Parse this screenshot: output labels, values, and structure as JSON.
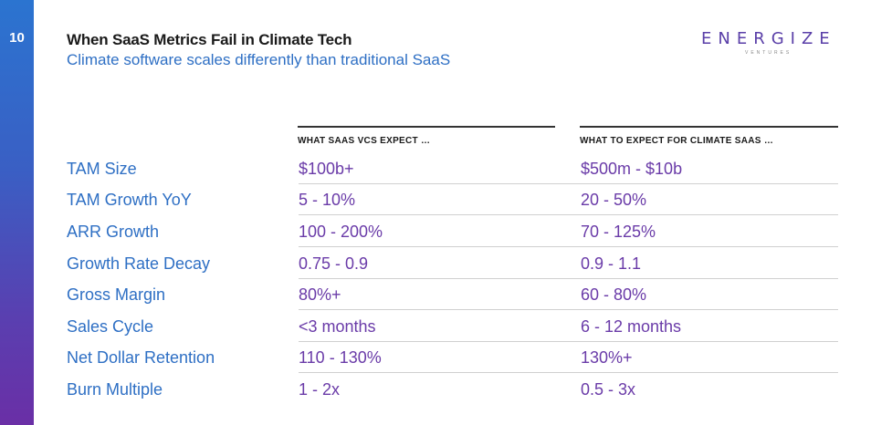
{
  "slide": {
    "page_number": "10",
    "title": "When SaaS Metrics Fail in Climate Tech",
    "subtitle": "Climate software scales differently than traditional SaaS"
  },
  "logo": {
    "word": "ENERGIZE",
    "sub": "VENTURES"
  },
  "table": {
    "headers": [
      "WHAT SAAS VCS EXPECT …",
      "WHAT TO EXPECT FOR CLIMATE SAAS …"
    ],
    "rows": [
      {
        "metric": "TAM Size",
        "saas": "$100b+",
        "climate": "$500m - $10b"
      },
      {
        "metric": "TAM Growth YoY",
        "saas": "5 - 10%",
        "climate": "20 - 50%"
      },
      {
        "metric": "ARR Growth",
        "saas": "100 - 200%",
        "climate": "70 - 125%"
      },
      {
        "metric": "Growth Rate Decay",
        "saas": "0.75 - 0.9",
        "climate": "0.9 - 1.1"
      },
      {
        "metric": "Gross Margin",
        "saas": "80%+",
        "climate": "60 - 80%"
      },
      {
        "metric": "Sales Cycle",
        "saas": "<3 months",
        "climate": "6 - 12 months"
      },
      {
        "metric": "Net Dollar Retention",
        "saas": "110 - 130%",
        "climate": "130%+"
      },
      {
        "metric": "Burn Multiple",
        "saas": "1 - 2x",
        "climate": "0.5 - 3x"
      }
    ]
  },
  "colors": {
    "accent_blue": "#2e6fc4",
    "accent_purple": "#6a3ba8"
  }
}
